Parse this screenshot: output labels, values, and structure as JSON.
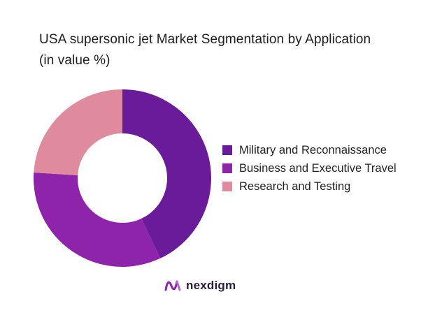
{
  "chart_data": {
    "type": "pie",
    "title": "USA supersonic jet Market Segmentation by Application (in value %)",
    "donut": true,
    "categories": [
      "Military and Reconnaissance",
      "Business and Executive Travel",
      "Research and Testing"
    ],
    "values": [
      43,
      33,
      24
    ],
    "colors": [
      "#6a1b9a",
      "#8e24aa",
      "#e08a9e"
    ],
    "legend_position": "right"
  },
  "brand": {
    "name": "nexdigm",
    "logo_icon": "nexdigm-logo-icon",
    "color": "#8e24aa"
  }
}
